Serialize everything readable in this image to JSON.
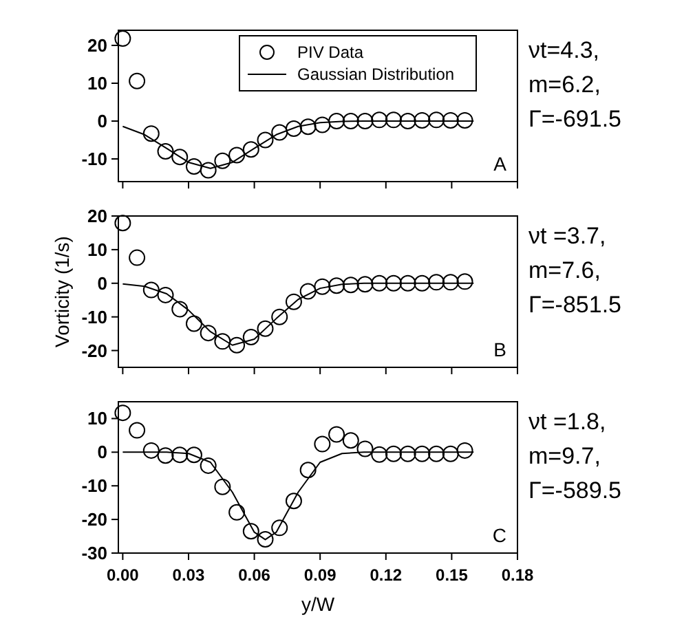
{
  "chart_data": [
    {
      "type": "scatter",
      "xlim": [
        -0.002,
        0.18
      ],
      "xticks": [
        {
          "value": 0,
          "label": null
        },
        {
          "value": 0.03,
          "label": null
        },
        {
          "value": 0.06,
          "label": null
        },
        {
          "value": 0.09,
          "label": null
        },
        {
          "value": 0.12,
          "label": null
        },
        {
          "value": 0.15,
          "label": null
        },
        {
          "value": 0.18,
          "label": null
        }
      ],
      "ylim": [
        -16,
        24
      ],
      "yticks": [
        -10,
        0,
        10,
        20
      ],
      "tick_labels": "y",
      "legend": "top right",
      "grid": false,
      "annotations": [
        "A",
        "νt=4.3,",
        "m=6.2,",
        "Γ=-691.5"
      ],
      "series": [
        {
          "name": "PIV Data",
          "marker": "circle",
          "color": "#000000",
          "x": [
            0,
            0.0065,
            0.013,
            0.0195,
            0.026,
            0.0325,
            0.039,
            0.0455,
            0.052,
            0.0585,
            0.065,
            0.0715,
            0.078,
            0.0845,
            0.091,
            0.0975,
            0.104,
            0.1105,
            0.117,
            0.1235,
            0.13,
            0.1365,
            0.143,
            0.1495,
            0.156
          ],
          "values": [
            21.8,
            10.6,
            -3.3,
            -8,
            -9.5,
            -12,
            -13,
            -10.5,
            -9,
            -7.5,
            -5,
            -3,
            -2,
            -1.5,
            -1,
            0,
            0,
            0,
            0.3,
            0.3,
            0,
            0.2,
            0.3,
            0.2,
            0.2
          ]
        },
        {
          "name": "Gaussian Distribution",
          "type": "line",
          "color": "#000000",
          "x": [
            0,
            0.01,
            0.02,
            0.03,
            0.04,
            0.05,
            0.06,
            0.07,
            0.08,
            0.09,
            0.1,
            0.11,
            0.12,
            0.13,
            0.14,
            0.15,
            0.16
          ],
          "values": [
            -1.4,
            -3.6,
            -7.2,
            -10.9,
            -12.5,
            -10.9,
            -7.2,
            -3.6,
            -1.4,
            -0.4,
            -0.1,
            0,
            0,
            0,
            0,
            0,
            0
          ]
        }
      ]
    },
    {
      "type": "scatter",
      "xlim": [
        -0.002,
        0.18
      ],
      "xticks": [
        {
          "value": 0,
          "label": null
        },
        {
          "value": 0.03,
          "label": null
        },
        {
          "value": 0.06,
          "label": null
        },
        {
          "value": 0.09,
          "label": null
        },
        {
          "value": 0.12,
          "label": null
        },
        {
          "value": 0.15,
          "label": null
        },
        {
          "value": 0.18,
          "label": null
        }
      ],
      "ylim": [
        -25,
        20
      ],
      "yticks": [
        -20,
        -10,
        0,
        10,
        20
      ],
      "tick_labels": "y",
      "grid": false,
      "ylabel": "Vorticity (1/s)",
      "annotations": [
        "B",
        "νt =3.7,",
        "m=7.6,",
        "Γ=-851.5"
      ],
      "series": [
        {
          "marker": "circle",
          "color": "#000000",
          "x": [
            0,
            0.0065,
            0.013,
            0.0195,
            0.026,
            0.0325,
            0.039,
            0.0455,
            0.052,
            0.0585,
            0.065,
            0.0715,
            0.078,
            0.0845,
            0.091,
            0.0975,
            0.104,
            0.1105,
            0.117,
            0.1235,
            0.13,
            0.1365,
            0.143,
            0.1495,
            0.156
          ],
          "values": [
            17.9,
            7.6,
            -2,
            -3.5,
            -7.7,
            -12,
            -14.8,
            -17.3,
            -18.4,
            -16,
            -13.5,
            -10,
            -5.5,
            -2.4,
            -1,
            -0.7,
            -0.5,
            -0.3,
            0,
            0,
            0,
            0,
            0.3,
            0.3,
            0.5
          ]
        },
        {
          "type": "line",
          "color": "#000000",
          "x": [
            0,
            0.01,
            0.02,
            0.03,
            0.04,
            0.05,
            0.06,
            0.07,
            0.08,
            0.09,
            0.1,
            0.11,
            0.12,
            0.13,
            0.14,
            0.15,
            0.16
          ],
          "values": [
            -0.2,
            -0.9,
            -3.1,
            -8,
            -14.4,
            -18.4,
            -16.6,
            -10.5,
            -4.8,
            -1.5,
            -0.3,
            0,
            0,
            0,
            0,
            0,
            0
          ]
        }
      ]
    },
    {
      "type": "scatter",
      "xlim": [
        -0.002,
        0.18
      ],
      "xticks": [
        {
          "value": 0,
          "label": "0.00"
        },
        {
          "value": 0.03,
          "label": "0.03"
        },
        {
          "value": 0.06,
          "label": "0.06"
        },
        {
          "value": 0.09,
          "label": "0.09"
        },
        {
          "value": 0.12,
          "label": "0.12"
        },
        {
          "value": 0.15,
          "label": "0.15"
        },
        {
          "value": 0.18,
          "label": "0.18"
        }
      ],
      "ylim": [
        -30,
        15
      ],
      "yticks": [
        -30,
        -20,
        -10,
        0,
        10
      ],
      "grid": false,
      "xlabel": "y/W",
      "annotations": [
        "C",
        "νt =1.8,",
        "m=9.7,",
        "Γ=-589.5"
      ],
      "series": [
        {
          "marker": "circle",
          "color": "#000000",
          "x": [
            0,
            0.0065,
            0.013,
            0.0195,
            0.026,
            0.0325,
            0.039,
            0.0455,
            0.052,
            0.0585,
            0.065,
            0.0715,
            0.078,
            0.0845,
            0.091,
            0.0975,
            0.104,
            0.1105,
            0.117,
            0.1235,
            0.13,
            0.1365,
            0.143,
            0.1495,
            0.156
          ],
          "values": [
            11.7,
            6.5,
            0.5,
            -1,
            -0.8,
            -0.8,
            -4,
            -10.3,
            -17.9,
            -23.5,
            -25.9,
            -22.5,
            -14.5,
            -5.3,
            2.4,
            5.3,
            3.5,
            1,
            -0.7,
            -0.5,
            -0.5,
            -0.5,
            -0.5,
            -0.5,
            0.5
          ]
        },
        {
          "type": "line",
          "color": "#000000",
          "x": [
            0,
            0.01,
            0.02,
            0.03,
            0.04,
            0.05,
            0.06,
            0.065,
            0.07,
            0.08,
            0.09,
            0.1,
            0.11,
            0.12,
            0.13,
            0.14,
            0.15,
            0.16
          ],
          "values": [
            0,
            0,
            0,
            -0.4,
            -3,
            -11.9,
            -23.8,
            -26,
            -23.8,
            -11.9,
            -3,
            -0.4,
            0,
            0,
            0,
            0,
            0,
            0
          ]
        }
      ]
    }
  ]
}
